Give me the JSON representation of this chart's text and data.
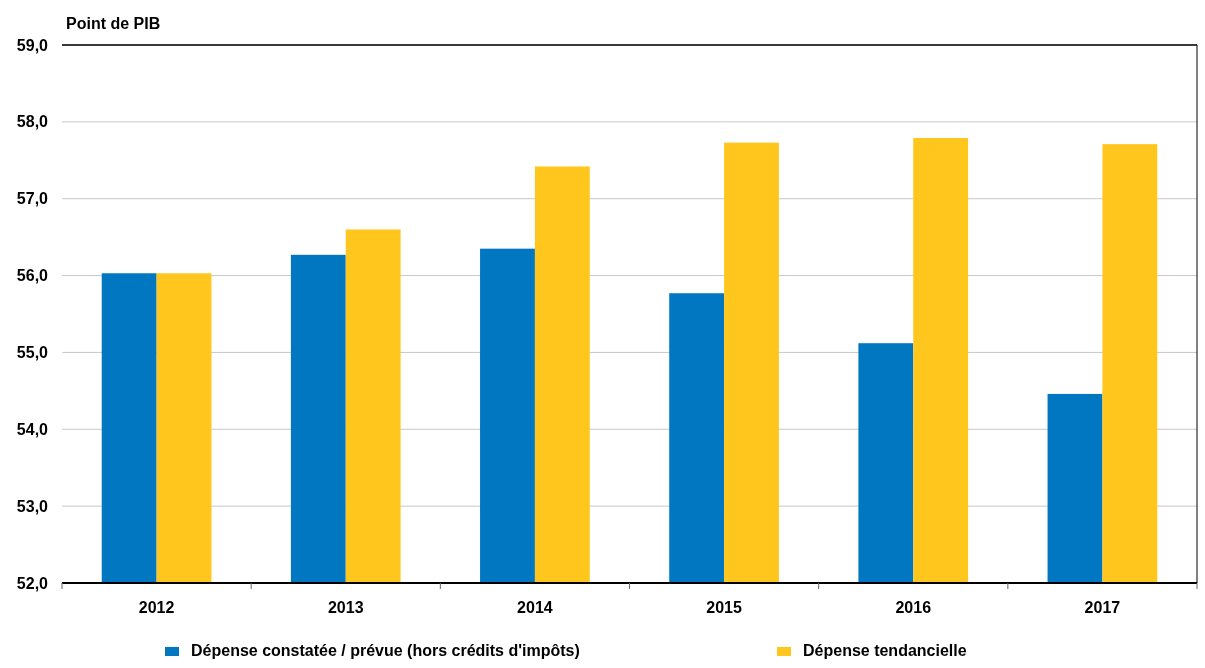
{
  "chart_data": {
    "type": "bar",
    "ylabel": "Point de PIB",
    "categories": [
      "2012",
      "2013",
      "2014",
      "2015",
      "2016",
      "2017"
    ],
    "series": [
      {
        "name": "Dépense constatée / prévue (hors crédits d'impôts)",
        "color": "#0077c0",
        "values": [
          56.03,
          56.27,
          56.35,
          55.77,
          55.12,
          54.46
        ]
      },
      {
        "name": "Dépense tendancielle",
        "color": "#ffc61e",
        "values": [
          56.03,
          56.6,
          57.42,
          57.73,
          57.79,
          57.71
        ]
      }
    ],
    "ylim": [
      52,
      59
    ],
    "yticks": [
      {
        "value": 52,
        "label": "52,0"
      },
      {
        "value": 53,
        "label": "53,0"
      },
      {
        "value": 54,
        "label": "54,0"
      },
      {
        "value": 55,
        "label": "55,0"
      },
      {
        "value": 56,
        "label": "56,0"
      },
      {
        "value": 57,
        "label": "57,0"
      },
      {
        "value": 58,
        "label": "58,0"
      },
      {
        "value": 59,
        "label": "59,0"
      }
    ],
    "grid": "y",
    "legend": "bottom"
  }
}
